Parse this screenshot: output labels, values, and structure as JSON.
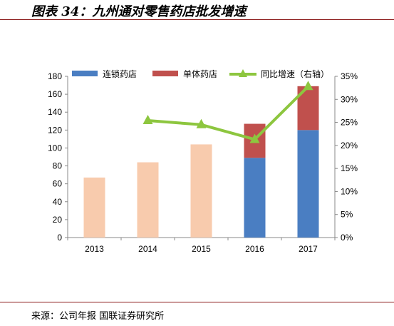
{
  "figure": {
    "title": "图表 34：九州通对零售药店批发增速",
    "source": "来源：公司年报 国联证券研究所"
  },
  "colors": {
    "chain": "#4a7ec2",
    "single": "#c0504d",
    "total_single_era": "#f8cbad",
    "growth": "#8dc63f",
    "rule": "#8b1a1a"
  },
  "chart_data": {
    "type": "bar",
    "categories": [
      "2013",
      "2014",
      "2015",
      "2016",
      "2017"
    ],
    "series": [
      {
        "name": "连锁药店",
        "type": "bar",
        "stack": "main",
        "values": [
          null,
          null,
          null,
          89,
          120
        ]
      },
      {
        "name": "单体药店",
        "type": "bar",
        "stack": "main",
        "values": [
          null,
          null,
          null,
          38,
          49
        ]
      },
      {
        "name": "",
        "type": "bar",
        "stack": "main",
        "values": [
          67,
          84,
          104,
          null,
          null
        ]
      },
      {
        "name": "同比增速（右轴）",
        "type": "line",
        "axis": "right",
        "values": [
          null,
          25.4,
          24.5,
          21.3,
          32.8
        ]
      }
    ],
    "ylim": [
      0,
      180
    ],
    "yticks": [
      0,
      20,
      40,
      60,
      80,
      100,
      120,
      140,
      160,
      180
    ],
    "y2lim": [
      0,
      35
    ],
    "y2ticks": [
      "0%",
      "5%",
      "10%",
      "15%",
      "20%",
      "25%",
      "30%",
      "35%"
    ],
    "legend": [
      "连锁药店",
      "单体药店",
      "同比增速（右轴）"
    ],
    "legend_position": "top",
    "grid": false
  }
}
